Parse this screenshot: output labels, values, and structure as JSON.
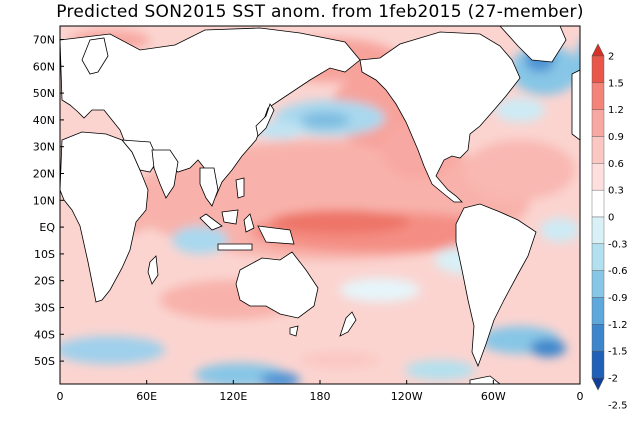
{
  "title": "Predicted SON2015 SST anom. from 1feb2015 (27-member)",
  "map": {
    "latitude_labels": [
      "70N",
      "60N",
      "50N",
      "40N",
      "30N",
      "20N",
      "10N",
      "EQ",
      "10S",
      "20S",
      "30S",
      "40S",
      "50S"
    ],
    "longitude_labels": [
      "0",
      "60E",
      "120E",
      "180",
      "120W",
      "60W",
      "0"
    ]
  },
  "colorbar": {
    "ticks": [
      "2",
      "1.5",
      "1.2",
      "0.9",
      "0.6",
      "0.3",
      "0",
      "-0.3",
      "-0.6",
      "-0.9",
      "-1.2",
      "-1.5",
      "-2",
      "-2.5"
    ],
    "colors": [
      "#d73027",
      "#e8574a",
      "#f4837a",
      "#f8a8a2",
      "#fbc7c3",
      "#fde0dd",
      "#ffffff",
      "#d8f0f6",
      "#b3e0ee",
      "#87c6e6",
      "#5ea8dc",
      "#3d86cc",
      "#2060b8",
      "#103f99"
    ]
  }
}
